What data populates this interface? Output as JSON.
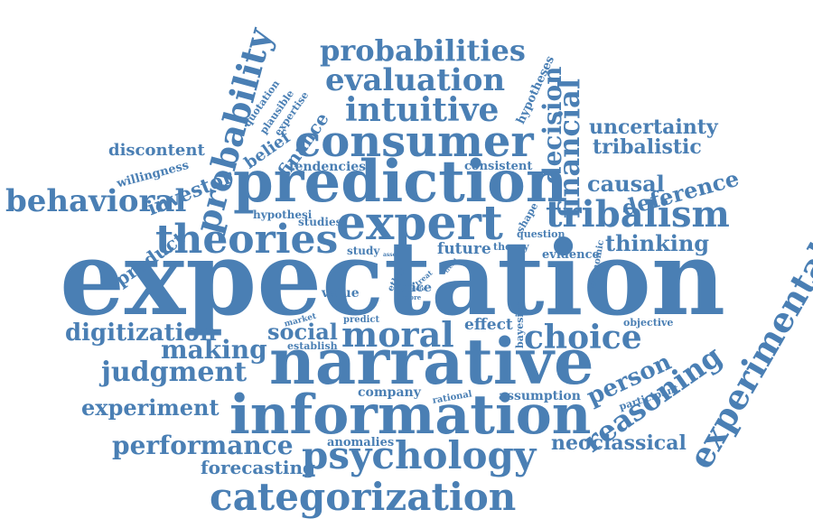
{
  "palette": {
    "word_color": "#4a7fb4",
    "background": "#ffffff"
  },
  "words": [
    {
      "id": "expectation",
      "text": "expectation"
    },
    {
      "id": "narrative",
      "text": "narrative"
    },
    {
      "id": "information",
      "text": "information"
    },
    {
      "id": "prediction",
      "text": "prediction"
    },
    {
      "id": "expert",
      "text": "expert"
    },
    {
      "id": "consumer",
      "text": "consumer"
    },
    {
      "id": "categorization",
      "text": "categorization"
    },
    {
      "id": "psychology",
      "text": "psychology"
    },
    {
      "id": "theories",
      "text": "theories"
    },
    {
      "id": "tribalism",
      "text": "tribalism"
    },
    {
      "id": "intuitive",
      "text": "intuitive"
    },
    {
      "id": "evaluation",
      "text": "evaluation"
    },
    {
      "id": "probabilities",
      "text": "probabilities"
    },
    {
      "id": "moral",
      "text": "moral"
    },
    {
      "id": "choice",
      "text": "choice"
    },
    {
      "id": "behavioral",
      "text": "behavioral"
    },
    {
      "id": "probability",
      "text": "probability"
    },
    {
      "id": "experimental",
      "text": "experimental"
    },
    {
      "id": "reasoning",
      "text": "reasoning"
    },
    {
      "id": "judgment",
      "text": "judgment"
    },
    {
      "id": "performance",
      "text": "performance"
    },
    {
      "id": "digitization",
      "text": "digitization"
    },
    {
      "id": "experiment",
      "text": "experiment"
    },
    {
      "id": "making",
      "text": "making"
    },
    {
      "id": "financial",
      "text": "financial"
    },
    {
      "id": "decision",
      "text": "decision"
    },
    {
      "id": "neoclassical",
      "text": "neoclassical"
    },
    {
      "id": "forecasting",
      "text": "forecasting"
    },
    {
      "id": "thinking",
      "text": "thinking"
    },
    {
      "id": "deference",
      "text": "deference"
    },
    {
      "id": "causal",
      "text": "causal"
    },
    {
      "id": "uncertainty",
      "text": "uncertainty"
    },
    {
      "id": "tribalistic",
      "text": "tribalistic"
    },
    {
      "id": "person",
      "text": "person"
    },
    {
      "id": "social",
      "text": "social"
    },
    {
      "id": "investor",
      "text": "investor"
    },
    {
      "id": "discontent",
      "text": "discontent"
    },
    {
      "id": "finance",
      "text": "finance"
    },
    {
      "id": "product",
      "text": "product"
    },
    {
      "id": "company",
      "text": "company"
    },
    {
      "id": "anomalies",
      "text": "anomalies"
    },
    {
      "id": "effect",
      "text": "effect"
    },
    {
      "id": "future",
      "text": "future"
    },
    {
      "id": "price",
      "text": "price"
    },
    {
      "id": "value",
      "text": "value"
    },
    {
      "id": "evidence",
      "text": "evidence"
    },
    {
      "id": "tendencies",
      "text": "tendencies"
    },
    {
      "id": "consistent",
      "text": "consistent"
    },
    {
      "id": "assumption",
      "text": "assumption"
    },
    {
      "id": "hypotheses",
      "text": "hypotheses"
    },
    {
      "id": "belief",
      "text": "belief"
    },
    {
      "id": "willingness",
      "text": "willingness"
    },
    {
      "id": "studies",
      "text": "studies"
    },
    {
      "id": "hypothesi",
      "text": "hypothesi"
    },
    {
      "id": "participant",
      "text": "participant"
    },
    {
      "id": "objective",
      "text": "objective"
    },
    {
      "id": "establish",
      "text": "establish"
    },
    {
      "id": "study",
      "text": "study"
    },
    {
      "id": "question",
      "text": "question"
    },
    {
      "id": "theory",
      "text": "theory"
    },
    {
      "id": "shape",
      "text": "shape"
    },
    {
      "id": "economic",
      "text": "economic"
    },
    {
      "id": "bayesian",
      "text": "bayesian"
    },
    {
      "id": "rational",
      "text": "rational"
    },
    {
      "id": "predict",
      "text": "predict"
    },
    {
      "id": "market",
      "text": "market"
    },
    {
      "id": "ethic",
      "text": "ethic"
    },
    {
      "id": "quotation",
      "text": "quotation"
    },
    {
      "id": "plausible",
      "text": "plausible"
    },
    {
      "id": "expertise",
      "text": "expertise"
    },
    {
      "id": "more",
      "text": "more"
    },
    {
      "id": "treat",
      "text": "treat"
    },
    {
      "id": "asset",
      "text": "asset"
    },
    {
      "id": "defer",
      "text": "defer"
    },
    {
      "id": "trend",
      "text": "trend"
    }
  ]
}
